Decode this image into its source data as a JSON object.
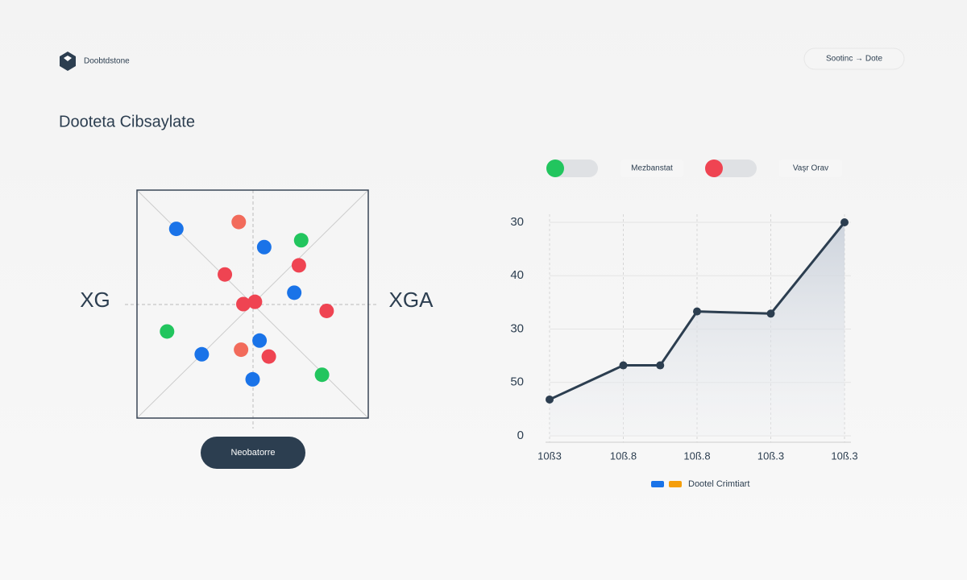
{
  "header": {
    "logo_text": "Doobtdstone",
    "button": "Sootinc → Dote"
  },
  "title": "Dooteta Cibsaylate",
  "scatter": {
    "left_label": "XG",
    "right_label": "XGA",
    "xlim": [
      0,
      10
    ],
    "ylim": [
      0,
      10
    ],
    "points": [
      {
        "x": 1.7,
        "y": 8.3,
        "color": "#1a73e8"
      },
      {
        "x": 4.4,
        "y": 8.6,
        "color": "#f26b5b"
      },
      {
        "x": 5.5,
        "y": 7.5,
        "color": "#1a73e8"
      },
      {
        "x": 7.1,
        "y": 7.8,
        "color": "#22c55e"
      },
      {
        "x": 7.0,
        "y": 6.7,
        "color": "#ef4452"
      },
      {
        "x": 3.8,
        "y": 6.3,
        "color": "#ef4452"
      },
      {
        "x": 6.8,
        "y": 5.5,
        "color": "#1a73e8"
      },
      {
        "x": 4.6,
        "y": 5.0,
        "color": "#ef4452"
      },
      {
        "x": 5.1,
        "y": 5.1,
        "color": "#ef4452"
      },
      {
        "x": 8.2,
        "y": 4.7,
        "color": "#ef4452"
      },
      {
        "x": 1.3,
        "y": 3.8,
        "color": "#22c55e"
      },
      {
        "x": 5.3,
        "y": 3.4,
        "color": "#1a73e8"
      },
      {
        "x": 4.5,
        "y": 3.0,
        "color": "#f26b5b"
      },
      {
        "x": 2.8,
        "y": 2.8,
        "color": "#1a73e8"
      },
      {
        "x": 5.7,
        "y": 2.7,
        "color": "#ef4452"
      },
      {
        "x": 5.0,
        "y": 1.7,
        "color": "#1a73e8"
      },
      {
        "x": 8.0,
        "y": 1.9,
        "color": "#22c55e"
      }
    ],
    "button": "Neobatorre"
  },
  "toggles": [
    {
      "label": "Mezbanstat",
      "color": "#22c55e"
    },
    {
      "label": "Vaşr Orav",
      "color": "#ef4452"
    }
  ],
  "line_chart": {
    "type": "line",
    "color": "#2c3e50",
    "x": [
      0,
      1,
      1.5,
      2,
      3,
      4
    ],
    "values": [
      0.68,
      1.32,
      1.32,
      2.33,
      2.29,
      4.0
    ],
    "xlim": [
      0,
      4
    ],
    "xticks": [
      {
        "value": 0,
        "label": "10ß3"
      },
      {
        "value": 1,
        "label": "10ß.8"
      },
      {
        "value": 2,
        "label": "10ß.8"
      },
      {
        "value": 3,
        "label": "10ß.3"
      },
      {
        "value": 4,
        "label": "10ß.3"
      }
    ],
    "ylim": [
      0,
      4
    ],
    "yticks": [
      {
        "value": 4,
        "label": "30"
      },
      {
        "value": 3,
        "label": "40"
      },
      {
        "value": 2,
        "label": "30"
      },
      {
        "value": 1,
        "label": "50"
      },
      0
    ],
    "legend": {
      "label": "Dootel Crimtiart",
      "colors": [
        "#1a73e8",
        "#f59e0b"
      ]
    }
  }
}
